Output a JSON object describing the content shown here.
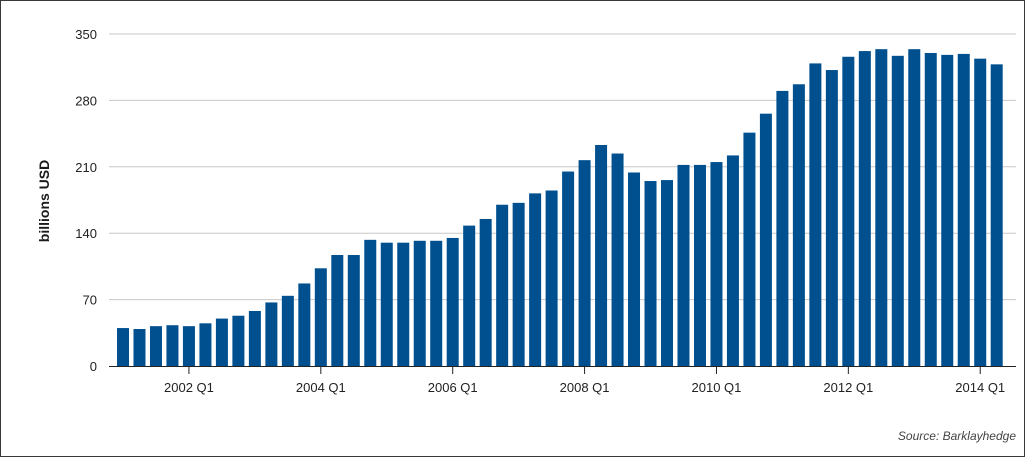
{
  "chart_data": {
    "type": "bar",
    "ylabel": "billions USD",
    "ylim": [
      0,
      350
    ],
    "yticks": [
      0,
      70,
      140,
      210,
      280,
      350
    ],
    "grid": true,
    "x_tick_labels": [
      "2002 Q1",
      "2004 Q1",
      "2006 Q1",
      "2008 Q1",
      "2010 Q1",
      "2012 Q1",
      "2014 Q1"
    ],
    "categories": [
      "2001 Q1",
      "2001 Q2",
      "2001 Q3",
      "2001 Q4",
      "2002 Q1",
      "2002 Q2",
      "2002 Q3",
      "2002 Q4",
      "2003 Q1",
      "2003 Q2",
      "2003 Q3",
      "2003 Q4",
      "2004 Q1",
      "2004 Q2",
      "2004 Q3",
      "2004 Q4",
      "2005 Q1",
      "2005 Q2",
      "2005 Q3",
      "2005 Q4",
      "2006 Q1",
      "2006 Q2",
      "2006 Q3",
      "2006 Q4",
      "2007 Q1",
      "2007 Q2",
      "2007 Q3",
      "2007 Q4",
      "2008 Q1",
      "2008 Q2",
      "2008 Q3",
      "2008 Q4",
      "2009 Q1",
      "2009 Q2",
      "2009 Q3",
      "2009 Q4",
      "2010 Q1",
      "2010 Q2",
      "2010 Q3",
      "2010 Q4",
      "2011 Q1",
      "2011 Q2",
      "2011 Q3",
      "2011 Q4",
      "2012 Q1",
      "2012 Q2",
      "2012 Q3",
      "2012 Q4",
      "2013 Q1",
      "2013 Q2",
      "2013 Q3",
      "2013 Q4",
      "2014 Q1",
      "2014 Q2"
    ],
    "values": [
      40,
      39,
      42,
      43,
      42,
      45,
      50,
      53,
      58,
      67,
      74,
      87,
      103,
      117,
      117,
      133,
      130,
      130,
      132,
      132,
      135,
      148,
      155,
      170,
      172,
      182,
      185,
      205,
      217,
      233,
      224,
      204,
      195,
      196,
      212,
      212,
      215,
      222,
      246,
      266,
      290,
      297,
      319,
      312,
      326,
      332,
      334,
      327,
      334,
      330,
      328,
      329,
      324,
      318
    ],
    "bar_color": "#00508f",
    "grid_color": "#c8c8c8",
    "source": "Source: Barklayhedge"
  }
}
